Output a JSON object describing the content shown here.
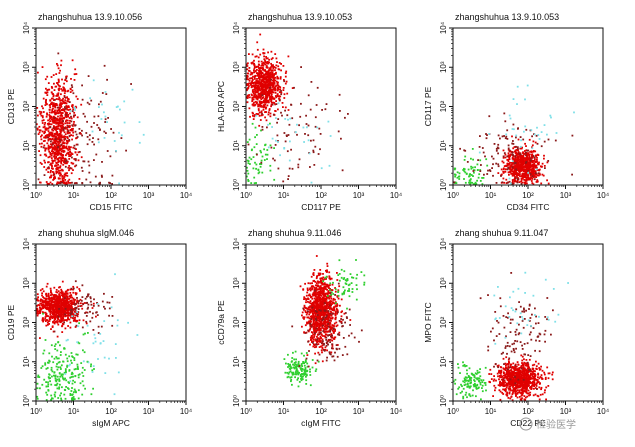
{
  "figure": {
    "watermark_text": "检验医学"
  },
  "colors": {
    "red": "#e00000",
    "dark_red": "#8a1a1a",
    "green": "#2fcf2f",
    "cyan": "#7fe0e8",
    "black": "#111111"
  },
  "chart_data": [
    {
      "type": "scatter",
      "title": "zhangshuhua 13.9.10.056",
      "xlabel": "CD15 FITC",
      "ylabel": "CD13 PE",
      "xlim": [
        1,
        10000
      ],
      "ylim": [
        1,
        10000
      ],
      "xscale": "log",
      "yscale": "log",
      "tick_labels": [
        "10⁰",
        "10¹",
        "10²",
        "10³",
        "10⁴"
      ],
      "populations": [
        {
          "name": "",
          "color": "#e00000",
          "center_x": 4,
          "center_y": 20,
          "spread_x_decades": 0.22,
          "spread_y_decades": 0.7,
          "n": 900
        },
        {
          "name": "",
          "color": "#8a1a1a",
          "center_x": 15,
          "center_y": 15,
          "spread_x_decades": 0.5,
          "spread_y_decades": 0.8,
          "n": 140
        },
        {
          "name": "",
          "color": "#7fe0e8",
          "center_x": 60,
          "center_y": 40,
          "spread_x_decades": 0.6,
          "spread_y_decades": 0.6,
          "n": 30
        }
      ]
    },
    {
      "type": "scatter",
      "title": "zhangshuhua 13.9.10.053",
      "xlabel": "CD117 PE",
      "ylabel": "HLA-DR APC",
      "xlim": [
        1,
        10000
      ],
      "ylim": [
        1,
        10000
      ],
      "xscale": "log",
      "yscale": "log",
      "tick_labels": [
        "10⁰",
        "10¹",
        "10²",
        "10³",
        "10⁴"
      ],
      "populations": [
        {
          "name": "",
          "color": "#e00000",
          "center_x": 3,
          "center_y": 350,
          "spread_x_decades": 0.22,
          "spread_y_decades": 0.35,
          "n": 800
        },
        {
          "name": "",
          "color": "#2fcf2f",
          "center_x": 2,
          "center_y": 5,
          "spread_x_decades": 0.25,
          "spread_y_decades": 0.4,
          "n": 60
        },
        {
          "name": "",
          "color": "#8a1a1a",
          "center_x": 20,
          "center_y": 30,
          "spread_x_decades": 0.6,
          "spread_y_decades": 0.7,
          "n": 90
        },
        {
          "name": "",
          "color": "#7fe0e8",
          "center_x": 20,
          "center_y": 15,
          "spread_x_decades": 0.5,
          "spread_y_decades": 0.5,
          "n": 30
        }
      ]
    },
    {
      "type": "scatter",
      "title": "zhangshuhua 13.9.10.053",
      "xlabel": "CD34 FITC",
      "ylabel": "CD117 PE",
      "xlim": [
        1,
        10000
      ],
      "ylim": [
        1,
        10000
      ],
      "xscale": "log",
      "yscale": "log",
      "tick_labels": [
        "10⁰",
        "10¹",
        "10²",
        "10³",
        "10⁴"
      ],
      "populations": [
        {
          "name": "",
          "color": "#e00000",
          "center_x": 70,
          "center_y": 3,
          "spread_x_decades": 0.25,
          "spread_y_decades": 0.22,
          "n": 700
        },
        {
          "name": "",
          "color": "#2fcf2f",
          "center_x": 2.5,
          "center_y": 1.8,
          "spread_x_decades": 0.25,
          "spread_y_decades": 0.2,
          "n": 70
        },
        {
          "name": "",
          "color": "#8a1a1a",
          "center_x": 30,
          "center_y": 6,
          "spread_x_decades": 0.6,
          "spread_y_decades": 0.5,
          "n": 120
        },
        {
          "name": "",
          "color": "#7fe0e8",
          "center_x": 80,
          "center_y": 25,
          "spread_x_decades": 0.5,
          "spread_y_decades": 0.5,
          "n": 35
        }
      ]
    },
    {
      "type": "scatter",
      "title": "zhang shuhua sIgM.046",
      "xlabel": "sIgM APC",
      "ylabel": "CD19 PE",
      "xlim": [
        1,
        10000
      ],
      "ylim": [
        1,
        10000
      ],
      "xscale": "log",
      "yscale": "log",
      "tick_labels": [
        "10⁰",
        "10¹",
        "10²",
        "10³",
        "10⁴"
      ],
      "populations": [
        {
          "name": "",
          "color": "#e00000",
          "center_x": 4,
          "center_y": 250,
          "spread_x_decades": 0.28,
          "spread_y_decades": 0.22,
          "n": 800
        },
        {
          "name": "",
          "color": "#2fcf2f",
          "center_x": 5,
          "center_y": 5,
          "spread_x_decades": 0.35,
          "spread_y_decades": 0.45,
          "n": 220
        },
        {
          "name": "",
          "color": "#8a1a1a",
          "center_x": 20,
          "center_y": 250,
          "spread_x_decades": 0.3,
          "spread_y_decades": 0.25,
          "n": 80
        },
        {
          "name": "",
          "color": "#7fe0e8",
          "center_x": 40,
          "center_y": 30,
          "spread_x_decades": 0.6,
          "spread_y_decades": 0.6,
          "n": 40
        }
      ]
    },
    {
      "type": "scatter",
      "title": "zhang shuhua 9.11.046",
      "xlabel": "cIgM FITC",
      "ylabel": "cCD79a PE",
      "xlim": [
        1,
        10000
      ],
      "ylim": [
        1,
        10000
      ],
      "xscale": "log",
      "yscale": "log",
      "tick_labels": [
        "10⁰",
        "10¹",
        "10²",
        "10³",
        "10⁴"
      ],
      "populations": [
        {
          "name": "",
          "color": "#e00000",
          "center_x": 100,
          "center_y": 200,
          "spread_x_decades": 0.2,
          "spread_y_decades": 0.45,
          "n": 1000
        },
        {
          "name": "",
          "color": "#2fcf2f",
          "center_x": 25,
          "center_y": 6,
          "spread_x_decades": 0.18,
          "spread_y_decades": 0.18,
          "n": 140
        },
        {
          "name": "",
          "color": "#2fcf2f",
          "center_x": 500,
          "center_y": 900,
          "spread_x_decades": 0.3,
          "spread_y_decades": 0.25,
          "n": 60
        },
        {
          "name": "",
          "color": "#8a1a1a",
          "center_x": 150,
          "center_y": 60,
          "spread_x_decades": 0.3,
          "spread_y_decades": 0.5,
          "n": 120
        }
      ]
    },
    {
      "type": "scatter",
      "title": "zhang shuhua 9.11.047",
      "xlabel": "CD22 PE",
      "ylabel": "MPO FITC",
      "xlim": [
        1,
        10000
      ],
      "ylim": [
        1,
        10000
      ],
      "xscale": "log",
      "yscale": "log",
      "tick_labels": [
        "10⁰",
        "10¹",
        "10²",
        "10³",
        "10⁴"
      ],
      "populations": [
        {
          "name": "",
          "color": "#e00000",
          "center_x": 60,
          "center_y": 3.5,
          "spread_x_decades": 0.3,
          "spread_y_decades": 0.2,
          "n": 850
        },
        {
          "name": "",
          "color": "#2fcf2f",
          "center_x": 3,
          "center_y": 3,
          "spread_x_decades": 0.2,
          "spread_y_decades": 0.2,
          "n": 120
        },
        {
          "name": "",
          "color": "#8a1a1a",
          "center_x": 60,
          "center_y": 40,
          "spread_x_decades": 0.45,
          "spread_y_decades": 0.6,
          "n": 120
        },
        {
          "name": "",
          "color": "#7fe0e8",
          "center_x": 60,
          "center_y": 200,
          "spread_x_decades": 0.45,
          "spread_y_decades": 0.5,
          "n": 35
        }
      ]
    }
  ]
}
